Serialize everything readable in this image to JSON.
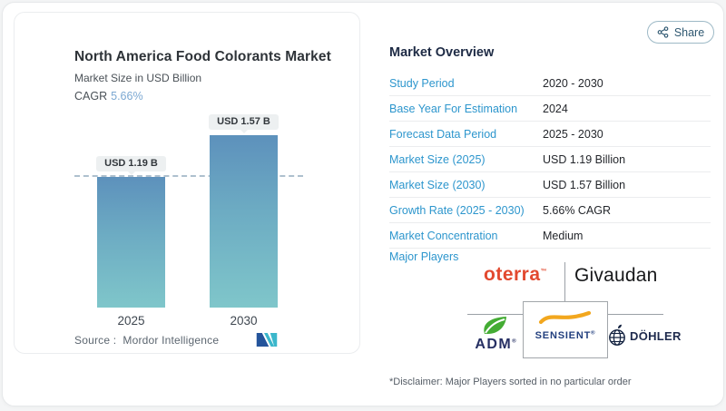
{
  "share": {
    "label": "Share"
  },
  "chart_panel": {
    "title": "North America Food Colorants Market",
    "subtitle": "Market Size in USD Billion",
    "cagr_label": "CAGR",
    "cagr_value": "5.66%",
    "source_label": "Source :",
    "source_value": "Mordor Intelligence"
  },
  "chart_data": {
    "type": "bar",
    "title": "North America Food Colorants Market",
    "ylabel": "Market Size in USD Billion",
    "unit": "USD Billion",
    "categories": [
      "2025",
      "2030"
    ],
    "values": [
      1.19,
      1.57
    ],
    "labels": [
      "USD 1.19 B",
      "USD 1.57 B"
    ],
    "cagr": "5.66% CAGR",
    "reference_line_value": 1.19,
    "bar_gradient_top": "#5d91bc",
    "bar_gradient_bottom": "#7fc6ca",
    "reference_line_color": "#aec0ce",
    "grid": false,
    "legend": false
  },
  "overview": {
    "heading": "Market Overview",
    "label_color": "#2d96cd",
    "rows": [
      {
        "label": "Study Period",
        "value": "2020 - 2030"
      },
      {
        "label": "Base Year For Estimation",
        "value": "2024"
      },
      {
        "label": "Forecast Data Period",
        "value": "2025 - 2030"
      },
      {
        "label": "Market Size (2025)",
        "value": "USD 1.19 Billion"
      },
      {
        "label": "Market Size (2030)",
        "value": "USD 1.57 Billion"
      },
      {
        "label": "Growth Rate (2025 - 2030)",
        "value": "5.66% CAGR"
      },
      {
        "label": "Market Concentration",
        "value": "Medium"
      }
    ],
    "major_players_label": "Major Players",
    "players": {
      "oterra": {
        "name": "oterra",
        "mark": "™",
        "color": "#e2492f"
      },
      "givaudan": {
        "name": "Givaudan",
        "color": "#17181a"
      },
      "adm": {
        "name": "ADM",
        "mark": "®",
        "color": "#262f63",
        "leaf_color": "#44ac34"
      },
      "sensient": {
        "name": "SENSIENT",
        "mark": "®",
        "color": "#223f7e",
        "swoosh_color": "#f2a71e"
      },
      "dohler": {
        "name": "DÖHLER",
        "color": "#1e2a4d"
      }
    },
    "disclaimer": "*Disclaimer: Major Players sorted in no particular order"
  }
}
